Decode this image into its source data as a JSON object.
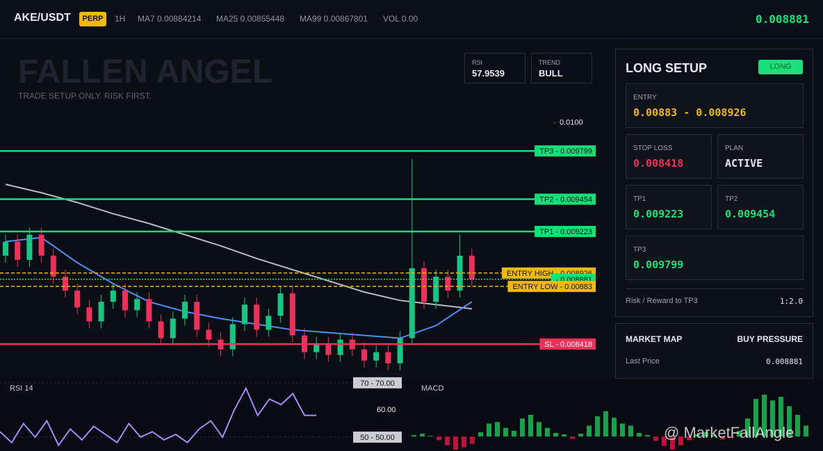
{
  "header": {
    "symbol": "AKE/USDT",
    "badge": "PERP",
    "interval": "1H",
    "ma7": "MA7 0.00884214",
    "ma25": "MA25 0.00855448",
    "ma99": "MA99 0.00867801",
    "volume": "VOL 0.00",
    "price": "0.008881"
  },
  "overlay": {
    "title": "FALLEN ANGEL",
    "subtitle": "TRADE SETUP ONLY. RISK FIRST.",
    "rsi_label": "RSI",
    "rsi_value": "57.9539",
    "trend_label": "TREND",
    "trend_value": "BULL",
    "watermark": "@ MarketFallAngle"
  },
  "setup_panel": {
    "title": "LONG SETUP",
    "badge": "LONG",
    "entry_label": "ENTRY",
    "entry_value": "0.00883 - 0.008926",
    "stop_label": "STOP LOSS",
    "stop_value": "0.008418",
    "plan_label": "PLAN",
    "plan_value": "ACTIVE",
    "tp1_label": "TP1",
    "tp1_value": "0.009223",
    "tp2_label": "TP2",
    "tp2_value": "0.009454",
    "tp3_label": "TP3",
    "tp3_value": "0.009799",
    "rr_label": "Risk / Reward to TP3",
    "rr_value": "1:2.0"
  },
  "market_map": {
    "title": "MARKET MAP",
    "status": "BUY PRESSURE",
    "last_label": "Last Price",
    "last_value": "0.008881"
  },
  "chart_data": [
    {
      "type": "candlestick",
      "ylim": [
        0.00817,
        0.0106
      ],
      "yticks": [
        {
          "value": 0.01,
          "label": "0.0100"
        }
      ],
      "up_color": "#16c784",
      "down_color": "#f0305a",
      "open": [
        0.00905,
        0.00915,
        0.00902,
        0.0092,
        0.00905,
        0.0089,
        0.0088,
        0.00868,
        0.00858,
        0.00872,
        0.0088,
        0.00866,
        0.00874,
        0.00858,
        0.00846,
        0.0086,
        0.00872,
        0.00852,
        0.00845,
        0.00838,
        0.00856,
        0.0087,
        0.00852,
        0.00862,
        0.00878,
        0.00848,
        0.00836,
        0.00842,
        0.00834,
        0.00845,
        0.00838,
        0.0083,
        0.00836,
        0.00828,
        0.00846,
        0.00896,
        0.00872,
        0.0089,
        0.0088,
        0.00905
      ],
      "high": [
        0.0092,
        0.0092,
        0.00925,
        0.00925,
        0.0091,
        0.00895,
        0.00885,
        0.00873,
        0.00877,
        0.00885,
        0.00885,
        0.00879,
        0.00879,
        0.00863,
        0.00865,
        0.00877,
        0.00877,
        0.00857,
        0.0085,
        0.00861,
        0.00875,
        0.00875,
        0.00867,
        0.00883,
        0.00883,
        0.00853,
        0.00847,
        0.00847,
        0.0085,
        0.0085,
        0.00843,
        0.00841,
        0.00841,
        0.00851,
        0.00974,
        0.00901,
        0.00895,
        0.00895,
        0.0092,
        0.0091
      ],
      "low": [
        0.009,
        0.00897,
        0.00897,
        0.009,
        0.00885,
        0.00875,
        0.00863,
        0.00853,
        0.00853,
        0.00867,
        0.00861,
        0.00861,
        0.00853,
        0.00841,
        0.00841,
        0.00855,
        0.00847,
        0.0084,
        0.00833,
        0.00833,
        0.00851,
        0.00847,
        0.00847,
        0.00857,
        0.00843,
        0.00831,
        0.00831,
        0.00829,
        0.00829,
        0.00833,
        0.00825,
        0.00825,
        0.00823,
        0.00823,
        0.00841,
        0.00867,
        0.00867,
        0.00875,
        0.00875,
        0.00883
      ],
      "close": [
        0.00915,
        0.00902,
        0.0092,
        0.00905,
        0.0089,
        0.0088,
        0.00868,
        0.00858,
        0.00872,
        0.0088,
        0.00866,
        0.00874,
        0.00858,
        0.00846,
        0.0086,
        0.00872,
        0.00852,
        0.00845,
        0.00838,
        0.00856,
        0.0087,
        0.00852,
        0.00862,
        0.00878,
        0.00848,
        0.00836,
        0.00842,
        0.00834,
        0.00845,
        0.00838,
        0.0083,
        0.00836,
        0.00828,
        0.00846,
        0.00896,
        0.00872,
        0.0089,
        0.0088,
        0.00905,
        0.00888
      ],
      "lines": [
        {
          "color": "#b8bcc6",
          "x": [
            0,
            3,
            6,
            9,
            12,
            15,
            18,
            21,
            24,
            27,
            30,
            33,
            36,
            39
          ],
          "values": [
            0.00956,
            0.0095,
            0.00943,
            0.00935,
            0.00928,
            0.0092,
            0.00912,
            0.00903,
            0.00895,
            0.00887,
            0.00879,
            0.00873,
            0.0087,
            0.00867
          ]
        },
        {
          "color": "#4f8ff7",
          "x": [
            0,
            3,
            6,
            9,
            12,
            15,
            18,
            21,
            24,
            27,
            30,
            33,
            36,
            39
          ],
          "values": [
            0.00915,
            0.00918,
            0.009,
            0.00885,
            0.00872,
            0.00865,
            0.0086,
            0.00856,
            0.00852,
            0.0085,
            0.00848,
            0.00846,
            0.00855,
            0.00872
          ]
        }
      ],
      "levels": [
        {
          "value": 0.009799,
          "label": "TP3 - 0.009799",
          "color": "#14e07a",
          "style": "solid"
        },
        {
          "value": 0.009454,
          "label": "TP2 - 0.009454",
          "color": "#14e07a",
          "style": "solid"
        },
        {
          "value": 0.009223,
          "label": "TP1 - 0.009223",
          "color": "#14e07a",
          "style": "solid"
        },
        {
          "value": 0.008926,
          "label": "ENTRY HIGH - 0.008926",
          "color": "#f0b90b",
          "style": "dashed"
        },
        {
          "value": 0.008881,
          "label": "- 0.008881",
          "color": "#14e07a",
          "style": "dotted"
        },
        {
          "value": 0.00883,
          "label": "ENTRY LOW - 0.00883",
          "color": "#f0b90b",
          "style": "dashed"
        },
        {
          "value": 0.008418,
          "label": "SL - 0.008418",
          "color": "#f0305a",
          "style": "solid"
        }
      ]
    },
    {
      "type": "line",
      "title": "RSI 14",
      "color": "#a78bfa",
      "ylim": [
        44.9,
        71.5
      ],
      "yticks": [
        {
          "value": 60,
          "label": "60.00"
        }
      ],
      "levels": [
        {
          "value": 70,
          "label": "70 - 70.00"
        },
        {
          "value": 50,
          "label": "50 - 50.00"
        }
      ],
      "values": [
        52,
        48,
        55,
        50,
        56,
        47,
        53,
        49,
        54,
        51,
        48,
        55,
        50,
        52,
        49,
        51,
        48,
        53,
        56,
        50,
        60,
        68,
        58,
        64,
        62,
        66,
        58,
        58
      ]
    },
    {
      "type": "bar",
      "title": "MACD",
      "up_color": "#16a34a",
      "down_color": "#be123c",
      "ylim": [
        -2,
        8
      ],
      "values": [
        0.2,
        0.4,
        0.1,
        -0.5,
        -1.2,
        -1.8,
        -1.5,
        -1.0,
        0.6,
        1.8,
        2.0,
        1.2,
        0.8,
        2.5,
        3.0,
        2.0,
        1.2,
        0.5,
        0.3,
        -0.3,
        0.4,
        1.5,
        2.8,
        3.5,
        2.6,
        1.8,
        1.5,
        0.5,
        0.2,
        -0.6,
        -1.3,
        -1.8,
        -1.2,
        -0.5,
        0.3,
        0.6,
        0.2,
        -0.4,
        -0.2,
        0.8,
        2.5,
        5.2,
        5.8,
        5.0,
        5.5,
        4.2,
        3.0,
        1.5
      ]
    }
  ]
}
